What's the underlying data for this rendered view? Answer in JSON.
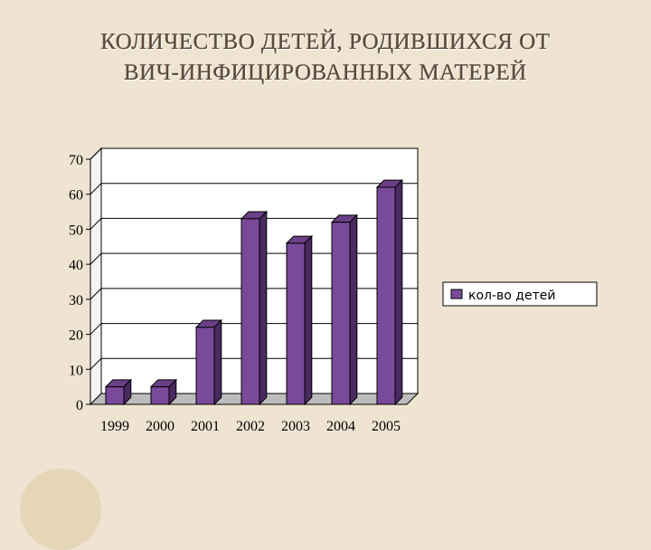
{
  "slide": {
    "title_line1": "КОЛИЧЕСТВО ДЕТЕЙ, РОДИВШИХСЯ ОТ",
    "title_line2": "ВИЧ-ИНФИЦИРОВАННЫХ МАТЕРЕЙ"
  },
  "colors": {
    "background": "#efe4d2",
    "bar_front": "#7a4a9a",
    "bar_top": "#6a3f86",
    "bar_side": "#4a2a60",
    "grid": "#000000"
  },
  "chart_data": {
    "type": "bar",
    "categories": [
      "1999",
      "2000",
      "2001",
      "2002",
      "2003",
      "2004",
      "2005"
    ],
    "series": [
      {
        "name": "кол-во детей",
        "values": [
          5,
          5,
          22,
          53,
          46,
          52,
          62
        ]
      }
    ],
    "yticks": [
      "0",
      "10",
      "20",
      "30",
      "40",
      "50",
      "60",
      "70"
    ],
    "ylim": [
      0,
      70
    ],
    "grid": true,
    "legend": "right",
    "style": "3d"
  }
}
